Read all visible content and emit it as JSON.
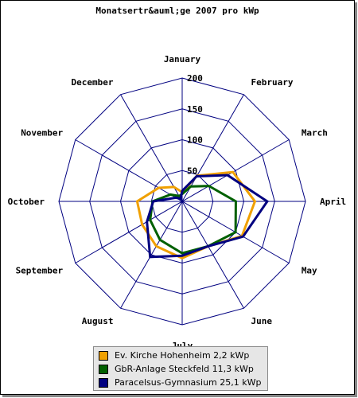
{
  "chart_data": {
    "type": "radar",
    "title": "Monatsertr&auml;ge 2007 pro kWp",
    "categories": [
      "January",
      "February",
      "March",
      "April",
      "May",
      "June",
      "July",
      "August",
      "September",
      "October",
      "November",
      "December"
    ],
    "rlim": [
      0,
      200
    ],
    "ticks": [
      50,
      100,
      150,
      200
    ],
    "grid": true,
    "legend_position": "bottom",
    "series": [
      {
        "name": "Ev. Kirche Hohenheim 2,2 kWp",
        "color": "#f0a000",
        "values": [
          15,
          48,
          95,
          118,
          112,
          84,
          92,
          84,
          75,
          73,
          44,
          27
        ]
      },
      {
        "name": "GbR-Anlage Steckfeld 11,3 kWp",
        "color": "#006000",
        "values": [
          12,
          28,
          50,
          87,
          100,
          84,
          84,
          72,
          60,
          48,
          22,
          10
        ]
      },
      {
        "name": "Paracelsus-Gymnasium 25,1 kWp",
        "color": "#000080",
        "values": [
          17,
          47,
          85,
          138,
          114,
          84,
          88,
          104,
          66,
          47,
          12,
          5
        ]
      }
    ]
  }
}
